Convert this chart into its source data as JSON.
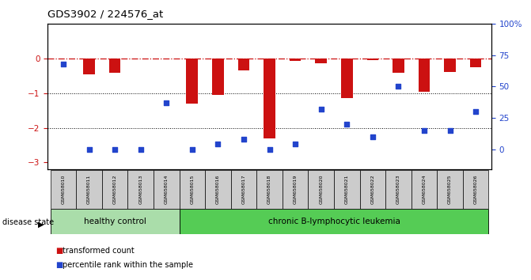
{
  "title": "GDS3902 / 224576_at",
  "samples": [
    "GSM658010",
    "GSM658011",
    "GSM658012",
    "GSM658013",
    "GSM658014",
    "GSM658015",
    "GSM658016",
    "GSM658017",
    "GSM658018",
    "GSM658019",
    "GSM658020",
    "GSM658021",
    "GSM658022",
    "GSM658023",
    "GSM658024",
    "GSM658025",
    "GSM658026"
  ],
  "bar_values": [
    0.0,
    -0.45,
    -0.42,
    0.0,
    0.0,
    -1.3,
    -1.05,
    -0.35,
    -2.3,
    -0.08,
    -0.15,
    -1.15,
    -0.05,
    -0.42,
    -0.95,
    -0.38,
    -0.25
  ],
  "dot_pct": [
    68,
    0,
    0,
    0,
    37,
    0,
    4,
    8,
    0,
    4,
    32,
    20,
    10,
    50,
    15,
    15,
    30
  ],
  "bar_color": "#cc1111",
  "dot_color": "#2244cc",
  "dashed_line_color": "#cc1111",
  "ylim_left": [
    -3.2,
    1.0
  ],
  "ylim_right": [
    -16,
    100
  ],
  "yticks_left": [
    0,
    -1,
    -2,
    -3
  ],
  "yticks_right": [
    0,
    25,
    50,
    75,
    100
  ],
  "hline_positions": [
    -1.0,
    -2.0
  ],
  "group1_label": "healthy control",
  "group2_label": "chronic B-lymphocytic leukemia",
  "group1_count": 5,
  "disease_state_label": "disease state",
  "legend_bar_label": "transformed count",
  "legend_dot_label": "percentile rank within the sample",
  "background_color": "#ffffff",
  "group1_color": "#aaddaa",
  "group2_color": "#55cc55",
  "tick_area_color": "#cccccc"
}
